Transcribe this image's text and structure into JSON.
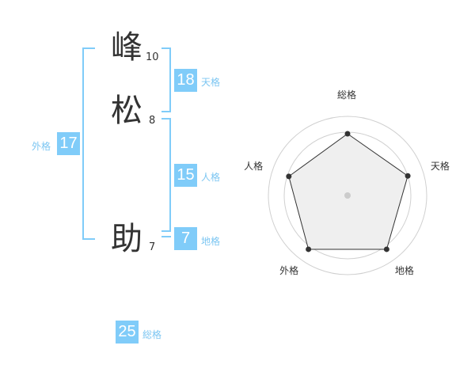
{
  "name": {
    "characters": [
      {
        "char": "峰",
        "strokes": "10"
      },
      {
        "char": "松",
        "strokes": "8"
      },
      {
        "char": "助",
        "strokes": "7"
      }
    ]
  },
  "fortunes": {
    "tenkaku": {
      "label": "天格",
      "value": "18"
    },
    "jinkaku": {
      "label": "人格",
      "value": "15"
    },
    "chikaku": {
      "label": "地格",
      "value": "7"
    },
    "gaikaku": {
      "label": "外格",
      "value": "17"
    },
    "soukaku": {
      "label": "総格",
      "value": "25"
    }
  },
  "colors": {
    "accent": "#80ccf9",
    "label": "#7cc6f2",
    "text": "#333333"
  },
  "chart_data": {
    "type": "radar",
    "axes": [
      "総格",
      "天格",
      "地格",
      "外格",
      "人格"
    ],
    "values": [
      3.9,
      4.0,
      4.2,
      4.2,
      3.9
    ],
    "range": [
      0,
      5
    ],
    "rings": 5
  }
}
